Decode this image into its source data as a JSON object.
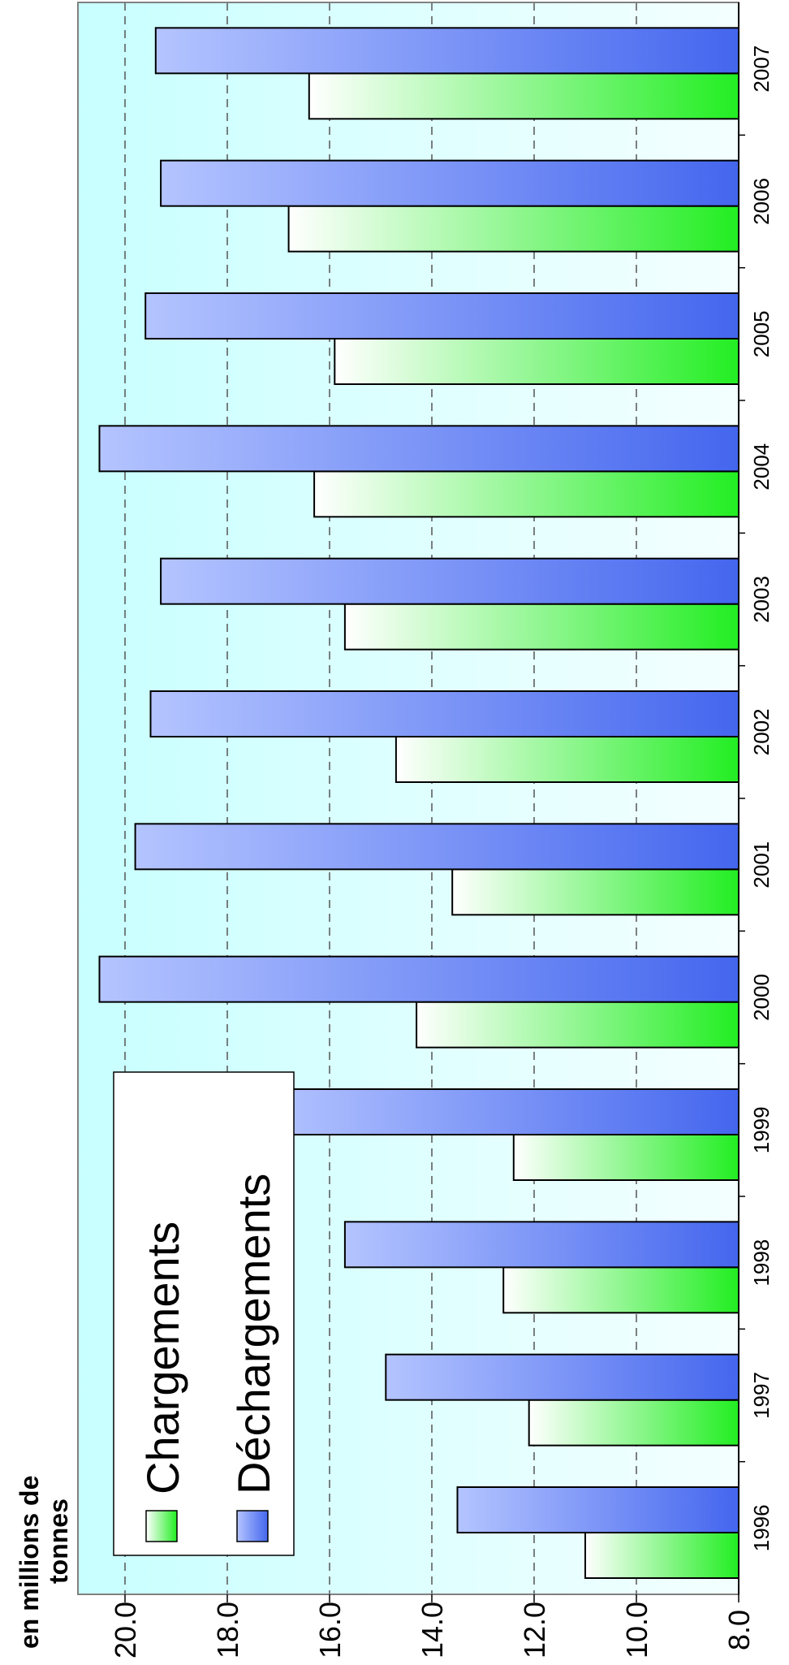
{
  "chart_data": {
    "type": "bar",
    "orientation": "horizontal",
    "ylabel": "en millions de tonnes",
    "categories": [
      "1996",
      "1997",
      "1998",
      "1999",
      "2000",
      "2001",
      "2002",
      "2003",
      "2004",
      "2005",
      "2006",
      "2007"
    ],
    "series": [
      {
        "name": "Chargements",
        "color": "#22ee22",
        "values": [
          11.0,
          12.1,
          12.6,
          12.4,
          14.3,
          13.6,
          14.7,
          15.7,
          16.3,
          15.9,
          16.8,
          16.4
        ]
      },
      {
        "name": "Déchargements",
        "color": "#4466ee",
        "values": [
          13.5,
          14.9,
          15.7,
          17.2,
          20.5,
          19.8,
          19.5,
          19.3,
          20.5,
          19.6,
          19.3,
          19.4
        ]
      }
    ],
    "ylim": [
      8.0,
      21.0
    ],
    "yticks": [
      "8.0",
      "10.0",
      "12.0",
      "14.0",
      "16.0",
      "18.0",
      "20.0"
    ],
    "grid": true,
    "legend_position": "bottom-left",
    "background_color": "#ccffff"
  }
}
